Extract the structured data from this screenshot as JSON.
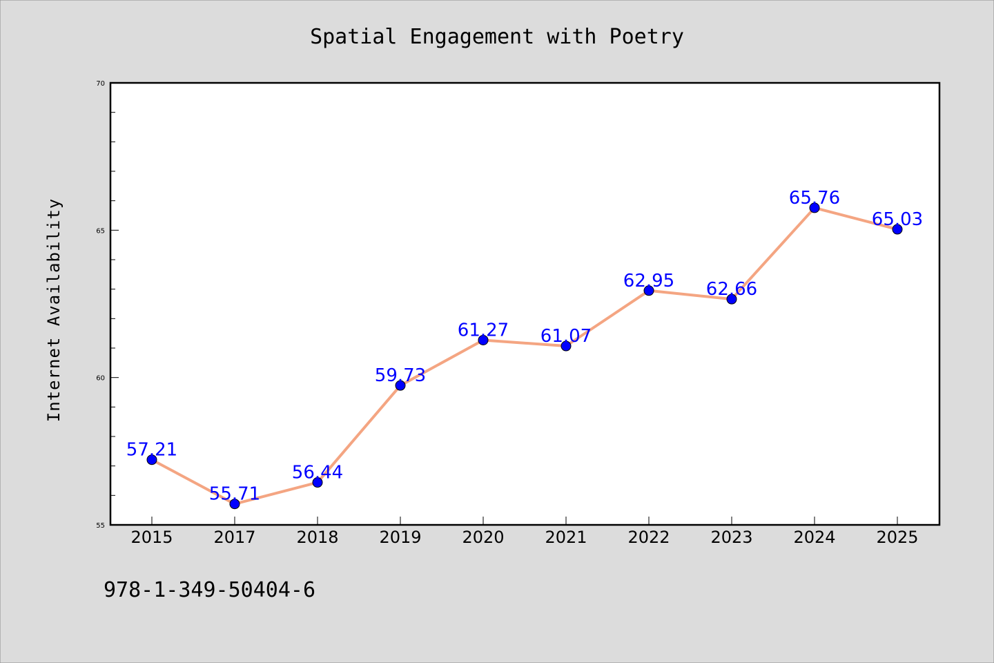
{
  "chart_data": {
    "type": "line",
    "title": "Spatial Engagement with Poetry",
    "xlabel": "",
    "ylabel": "Internet Availability",
    "categories": [
      "2015",
      "2017",
      "2018",
      "2019",
      "2020",
      "2021",
      "2022",
      "2023",
      "2024",
      "2025"
    ],
    "series": [
      {
        "values": [
          57.21,
          55.71,
          56.44,
          59.73,
          61.27,
          61.07,
          62.95,
          62.66,
          65.76,
          65.03
        ],
        "labels": [
          "57.21",
          "55.71",
          "56.44",
          "59.73",
          "61.27",
          "61.07",
          "62.95",
          "62.66",
          "65.76",
          "65.03"
        ],
        "line_color": "#f4a582",
        "marker_color": "#0000ff"
      }
    ],
    "ylim": [
      55,
      70
    ],
    "yticks": [
      "55",
      "60",
      "65",
      "70"
    ],
    "grid": false,
    "legend": "none"
  },
  "colors": {
    "figure_background": "#dcdcdc",
    "plot_background": "#ffffff",
    "data_label": "#0000ff"
  },
  "footer": {
    "isbn": "978-1-349-50404-6"
  }
}
